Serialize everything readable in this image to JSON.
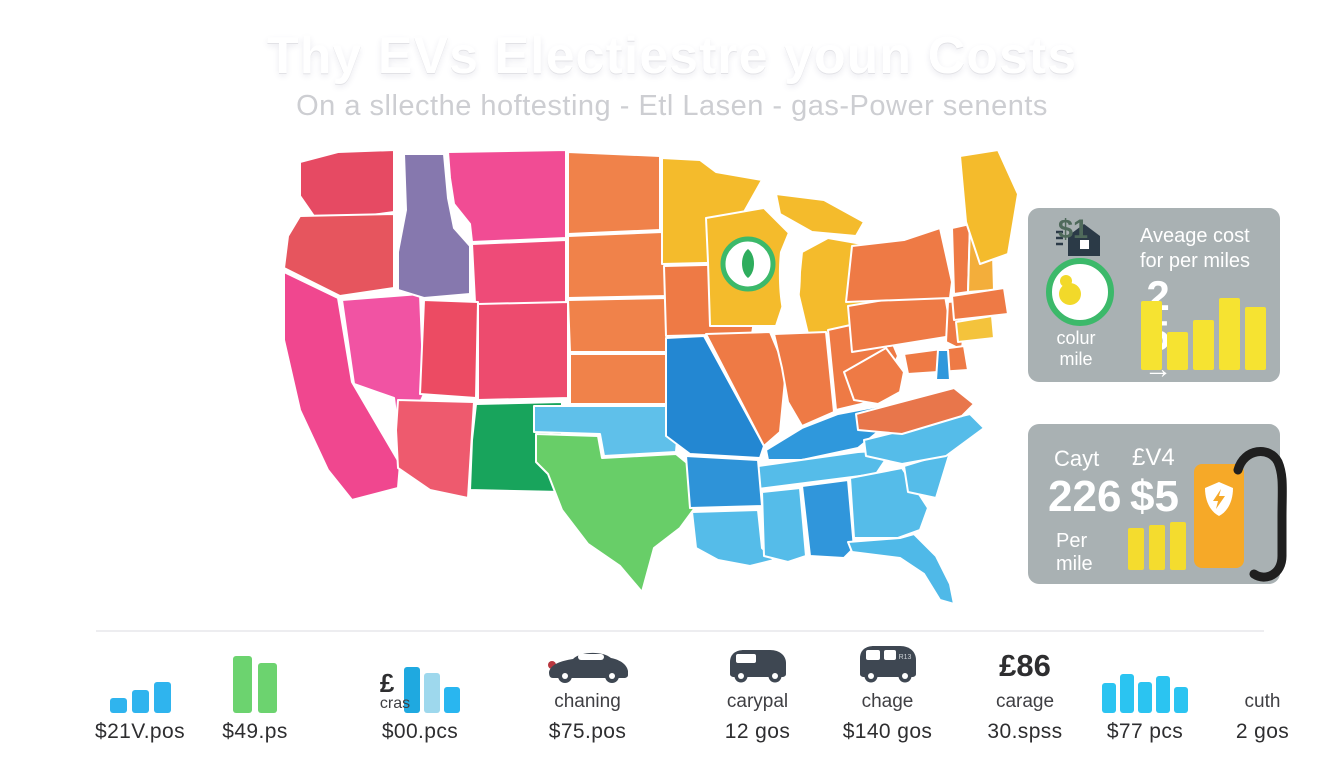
{
  "title": "Thy EVs Electiestre youn Costs",
  "subtitle": "On a sllecthe hoftesting - Etl Lasen - gas-Power senents",
  "colors": {
    "card_bg": "#A9B1B3",
    "title": "#FFFFFF",
    "subtitle": "#CDCED2",
    "text_dark": "#2E2E30",
    "text_caption": "#3F3F43",
    "bar_yellow": "#F6E331",
    "pump_orange": "#F6A928",
    "hose_black": "#1F1F1F",
    "car_dark": "#3E4752",
    "house_dark": "#2B3A47",
    "badge_value_color": "#4F6A5B",
    "pear_yellow": "#F2D92A"
  },
  "map": {
    "badge": {
      "ring": "#3CB96A",
      "leaf": "#2EAD5D"
    },
    "state_colors": {
      "WA": "#E64A63",
      "OR": "#E6555E",
      "CA": "#F0478F",
      "NV": "#F153A3",
      "ID": "#8678AE",
      "MT": "#F14C94",
      "WY": "#EE4B78",
      "UT": "#EC4B63",
      "CO": "#ED4B6E",
      "AZ": "#EE5A6E",
      "NM": "#18A45C",
      "ND": "#F0824A",
      "SD": "#F0824A",
      "NE": "#F0824A",
      "KS": "#F0824A",
      "OK": "#5FC0EA",
      "TX": "#68CE68",
      "MN": "#F4BB2C",
      "IA": "#EE7A45",
      "MO": "#2387D2",
      "WI": "#F4BB2C",
      "MI_UP": "#F4BB2C",
      "MI": "#F4BB2C",
      "IL": "#EE7A45",
      "IN": "#EE7A45",
      "OH": "#EE7A45",
      "KY": "#2F98DC",
      "TN": "#55BCE9",
      "AR": "#2E93D8",
      "LA": "#55BCE9",
      "MS": "#55BCE9",
      "AL": "#3096DB",
      "GA": "#55BCE9",
      "FL": "#4FB9E8",
      "SC": "#55BCE9",
      "NC": "#55BCE9",
      "VA": "#E8764B",
      "WV": "#EE7A45",
      "PA": "#EE7A45",
      "NY": "#EE7A45",
      "NJ": "#EE7A45",
      "MD": "#EE7A45",
      "MD_BAY": "#2F98DC",
      "VT": "#EE7A45",
      "NH": "#F3AE3B",
      "ME": "#F4BB2C",
      "MA": "#EE7A45",
      "CT": "#F4C33C"
    }
  },
  "cards": {
    "card1": {
      "heading_line1": "Aveage cost",
      "heading_line2": "for per miles",
      "digit_top": "2",
      "digit_bottom": "5",
      "arrow": "→",
      "badge_value": "$1",
      "caption_line1": "colur",
      "caption_line2": "mile",
      "bars": {
        "width": 21,
        "gap": 5,
        "color": "#F6E331",
        "radius": 2,
        "heights": [
          69,
          38,
          50,
          72,
          63
        ]
      }
    },
    "card2": {
      "label_left": "Cayt",
      "label_right": "£V4",
      "value_left": "226",
      "value_right": "$5",
      "caption_line1": "Per",
      "caption_line2": "mile",
      "bars": {
        "width": 16,
        "gap": 5,
        "color": "#F4DC2E",
        "radius": 2,
        "heights": [
          42,
          45,
          48
        ]
      }
    }
  },
  "stats": [
    {
      "caption": "",
      "value": "$21V.pos",
      "bars": {
        "width": 17,
        "gap": 5,
        "color": "#2FB4EE",
        "radius": 3,
        "heights": [
          15,
          23,
          31
        ]
      }
    },
    {
      "caption": "",
      "value": "$49.ps",
      "bars": {
        "width": 19,
        "gap": 6,
        "color": "#6CD36F",
        "radius": 3,
        "heights": [
          57,
          50
        ]
      }
    },
    {
      "prefix_big": "£",
      "prefix_small": "cras",
      "caption": "",
      "value": "$00.pcs",
      "bars": {
        "width": 16,
        "gap": 4,
        "colors": [
          "#1FA9E0",
          "#9ED8ED",
          "#29B6F0"
        ],
        "radius": 3,
        "heights": [
          46,
          40,
          26
        ]
      }
    },
    {
      "caption": "chaning",
      "value": "$75.pos",
      "icon": "sedan-car-icon"
    },
    {
      "caption": "carypal",
      "value": "12 gos",
      "icon": "suv-car-icon"
    },
    {
      "caption": "chage",
      "value": "$140 gos",
      "icon": "minivan-car-icon",
      "icon_badge": "R13"
    },
    {
      "big": "£86",
      "caption": "carage",
      "value": "30.spss"
    },
    {
      "caption": "",
      "value": "$77 pcs",
      "bars": {
        "width": 14,
        "gap": 4,
        "color": "#2BC4F1",
        "radius": 3,
        "heights": [
          30,
          39,
          31,
          37,
          26
        ]
      }
    },
    {
      "caption": "cuth",
      "value": "2 gos"
    }
  ]
}
